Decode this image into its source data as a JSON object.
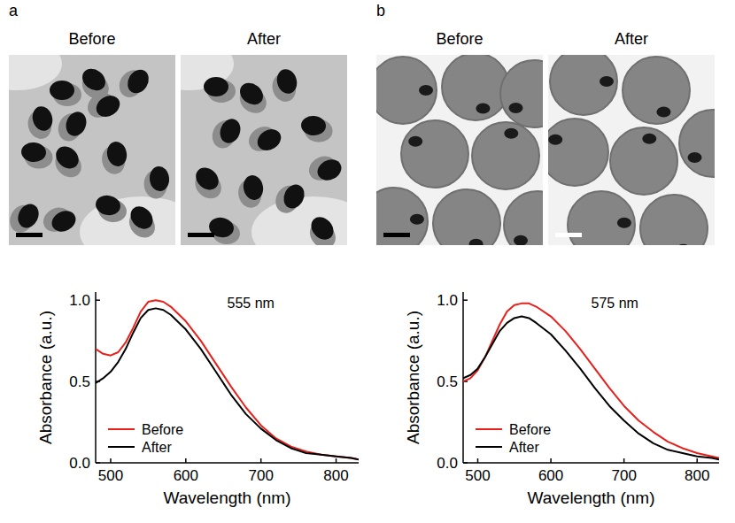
{
  "panels": [
    {
      "label": "a",
      "image_titles": [
        "Before",
        "After"
      ]
    },
    {
      "label": "b",
      "image_titles": [
        "Before",
        "After"
      ]
    }
  ],
  "chart_data": [
    {
      "type": "line",
      "x_label": "Wavelength (nm)",
      "y_label": "Absorbance (a.u.)",
      "annotations": [
        {
          "text": "555 nm"
        }
      ],
      "x": [
        480,
        490,
        500,
        510,
        520,
        530,
        540,
        550,
        560,
        570,
        580,
        600,
        620,
        640,
        660,
        680,
        700,
        720,
        740,
        760,
        780,
        800,
        820,
        830
      ],
      "series": [
        {
          "name": "Before",
          "color": "#e8201c",
          "values": [
            0.7,
            0.67,
            0.66,
            0.68,
            0.74,
            0.83,
            0.93,
            0.99,
            1.0,
            0.99,
            0.96,
            0.87,
            0.75,
            0.61,
            0.47,
            0.34,
            0.23,
            0.15,
            0.1,
            0.07,
            0.05,
            0.04,
            0.03,
            0.02
          ]
        },
        {
          "name": "After",
          "color": "#000000",
          "values": [
            0.49,
            0.52,
            0.56,
            0.62,
            0.7,
            0.8,
            0.89,
            0.94,
            0.95,
            0.94,
            0.91,
            0.82,
            0.7,
            0.56,
            0.42,
            0.3,
            0.21,
            0.14,
            0.09,
            0.06,
            0.05,
            0.04,
            0.03,
            0.02
          ]
        }
      ],
      "xlim": [
        480,
        830
      ],
      "ylim": [
        0,
        1.05
      ],
      "xticks": [
        500,
        600,
        700,
        800
      ],
      "yticks": [
        {
          "value": 0,
          "label": "0.0"
        },
        {
          "value": 0.5,
          "label": "0.5"
        },
        {
          "value": 1,
          "label": "1.0"
        }
      ],
      "legend": "lower left"
    },
    {
      "type": "line",
      "x_label": "Wavelength (nm)",
      "y_label": "Absorbance (a.u.)",
      "annotations": [
        {
          "text": "575 nm"
        }
      ],
      "x": [
        480,
        490,
        500,
        510,
        520,
        530,
        540,
        550,
        560,
        570,
        580,
        600,
        620,
        640,
        660,
        680,
        700,
        720,
        740,
        760,
        780,
        800,
        820,
        830
      ],
      "series": [
        {
          "name": "Before",
          "color": "#e8201c",
          "values": [
            0.5,
            0.52,
            0.57,
            0.65,
            0.75,
            0.85,
            0.93,
            0.97,
            0.98,
            0.98,
            0.96,
            0.9,
            0.81,
            0.7,
            0.58,
            0.46,
            0.35,
            0.26,
            0.19,
            0.13,
            0.09,
            0.06,
            0.04,
            0.03
          ]
        },
        {
          "name": "After",
          "color": "#000000",
          "values": [
            0.52,
            0.54,
            0.58,
            0.65,
            0.73,
            0.81,
            0.86,
            0.89,
            0.9,
            0.89,
            0.86,
            0.79,
            0.69,
            0.58,
            0.46,
            0.35,
            0.26,
            0.18,
            0.12,
            0.08,
            0.06,
            0.04,
            0.03,
            0.02
          ]
        }
      ],
      "xlim": [
        480,
        830
      ],
      "ylim": [
        0,
        1.05
      ],
      "xticks": [
        500,
        600,
        700,
        800
      ],
      "yticks": [
        {
          "value": 0,
          "label": "0.0"
        },
        {
          "value": 0.5,
          "label": "0.5"
        },
        {
          "value": 1,
          "label": "1.0"
        }
      ],
      "legend": "lower left"
    }
  ]
}
